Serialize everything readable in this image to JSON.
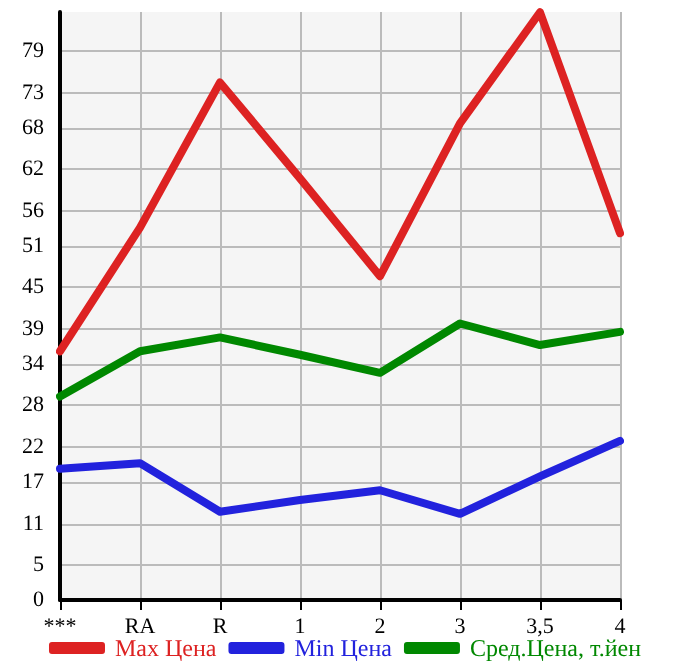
{
  "chart_data": {
    "type": "line",
    "categories": [
      "***",
      "RA",
      "R",
      "1",
      "2",
      "3",
      "3,5",
      "4"
    ],
    "series": [
      {
        "name": "Max Цена",
        "color": "#dd2222",
        "values": [
          35.8,
          53.6,
          74.5,
          60.7,
          46.6,
          68.6,
          84.6,
          52.8
        ]
      },
      {
        "name": "Min Цена",
        "color": "#2222dd",
        "values": [
          18.9,
          19.7,
          12.7,
          14.4,
          15.8,
          12.4,
          17.8,
          22.9
        ]
      },
      {
        "name": "Сред.Цена, т.йен",
        "color": "#008800",
        "values": [
          29.3,
          35.8,
          37.8,
          35.3,
          32.7,
          39.8,
          36.7,
          38.6
        ]
      }
    ],
    "ylim": [
      0,
      84.64
    ],
    "yticks": [
      0,
      5,
      11,
      17,
      22,
      28,
      34,
      39,
      45,
      51,
      56,
      62,
      68,
      73,
      79
    ],
    "grid": true,
    "legend": "bottom",
    "marker": "none",
    "line_style": "solid"
  }
}
